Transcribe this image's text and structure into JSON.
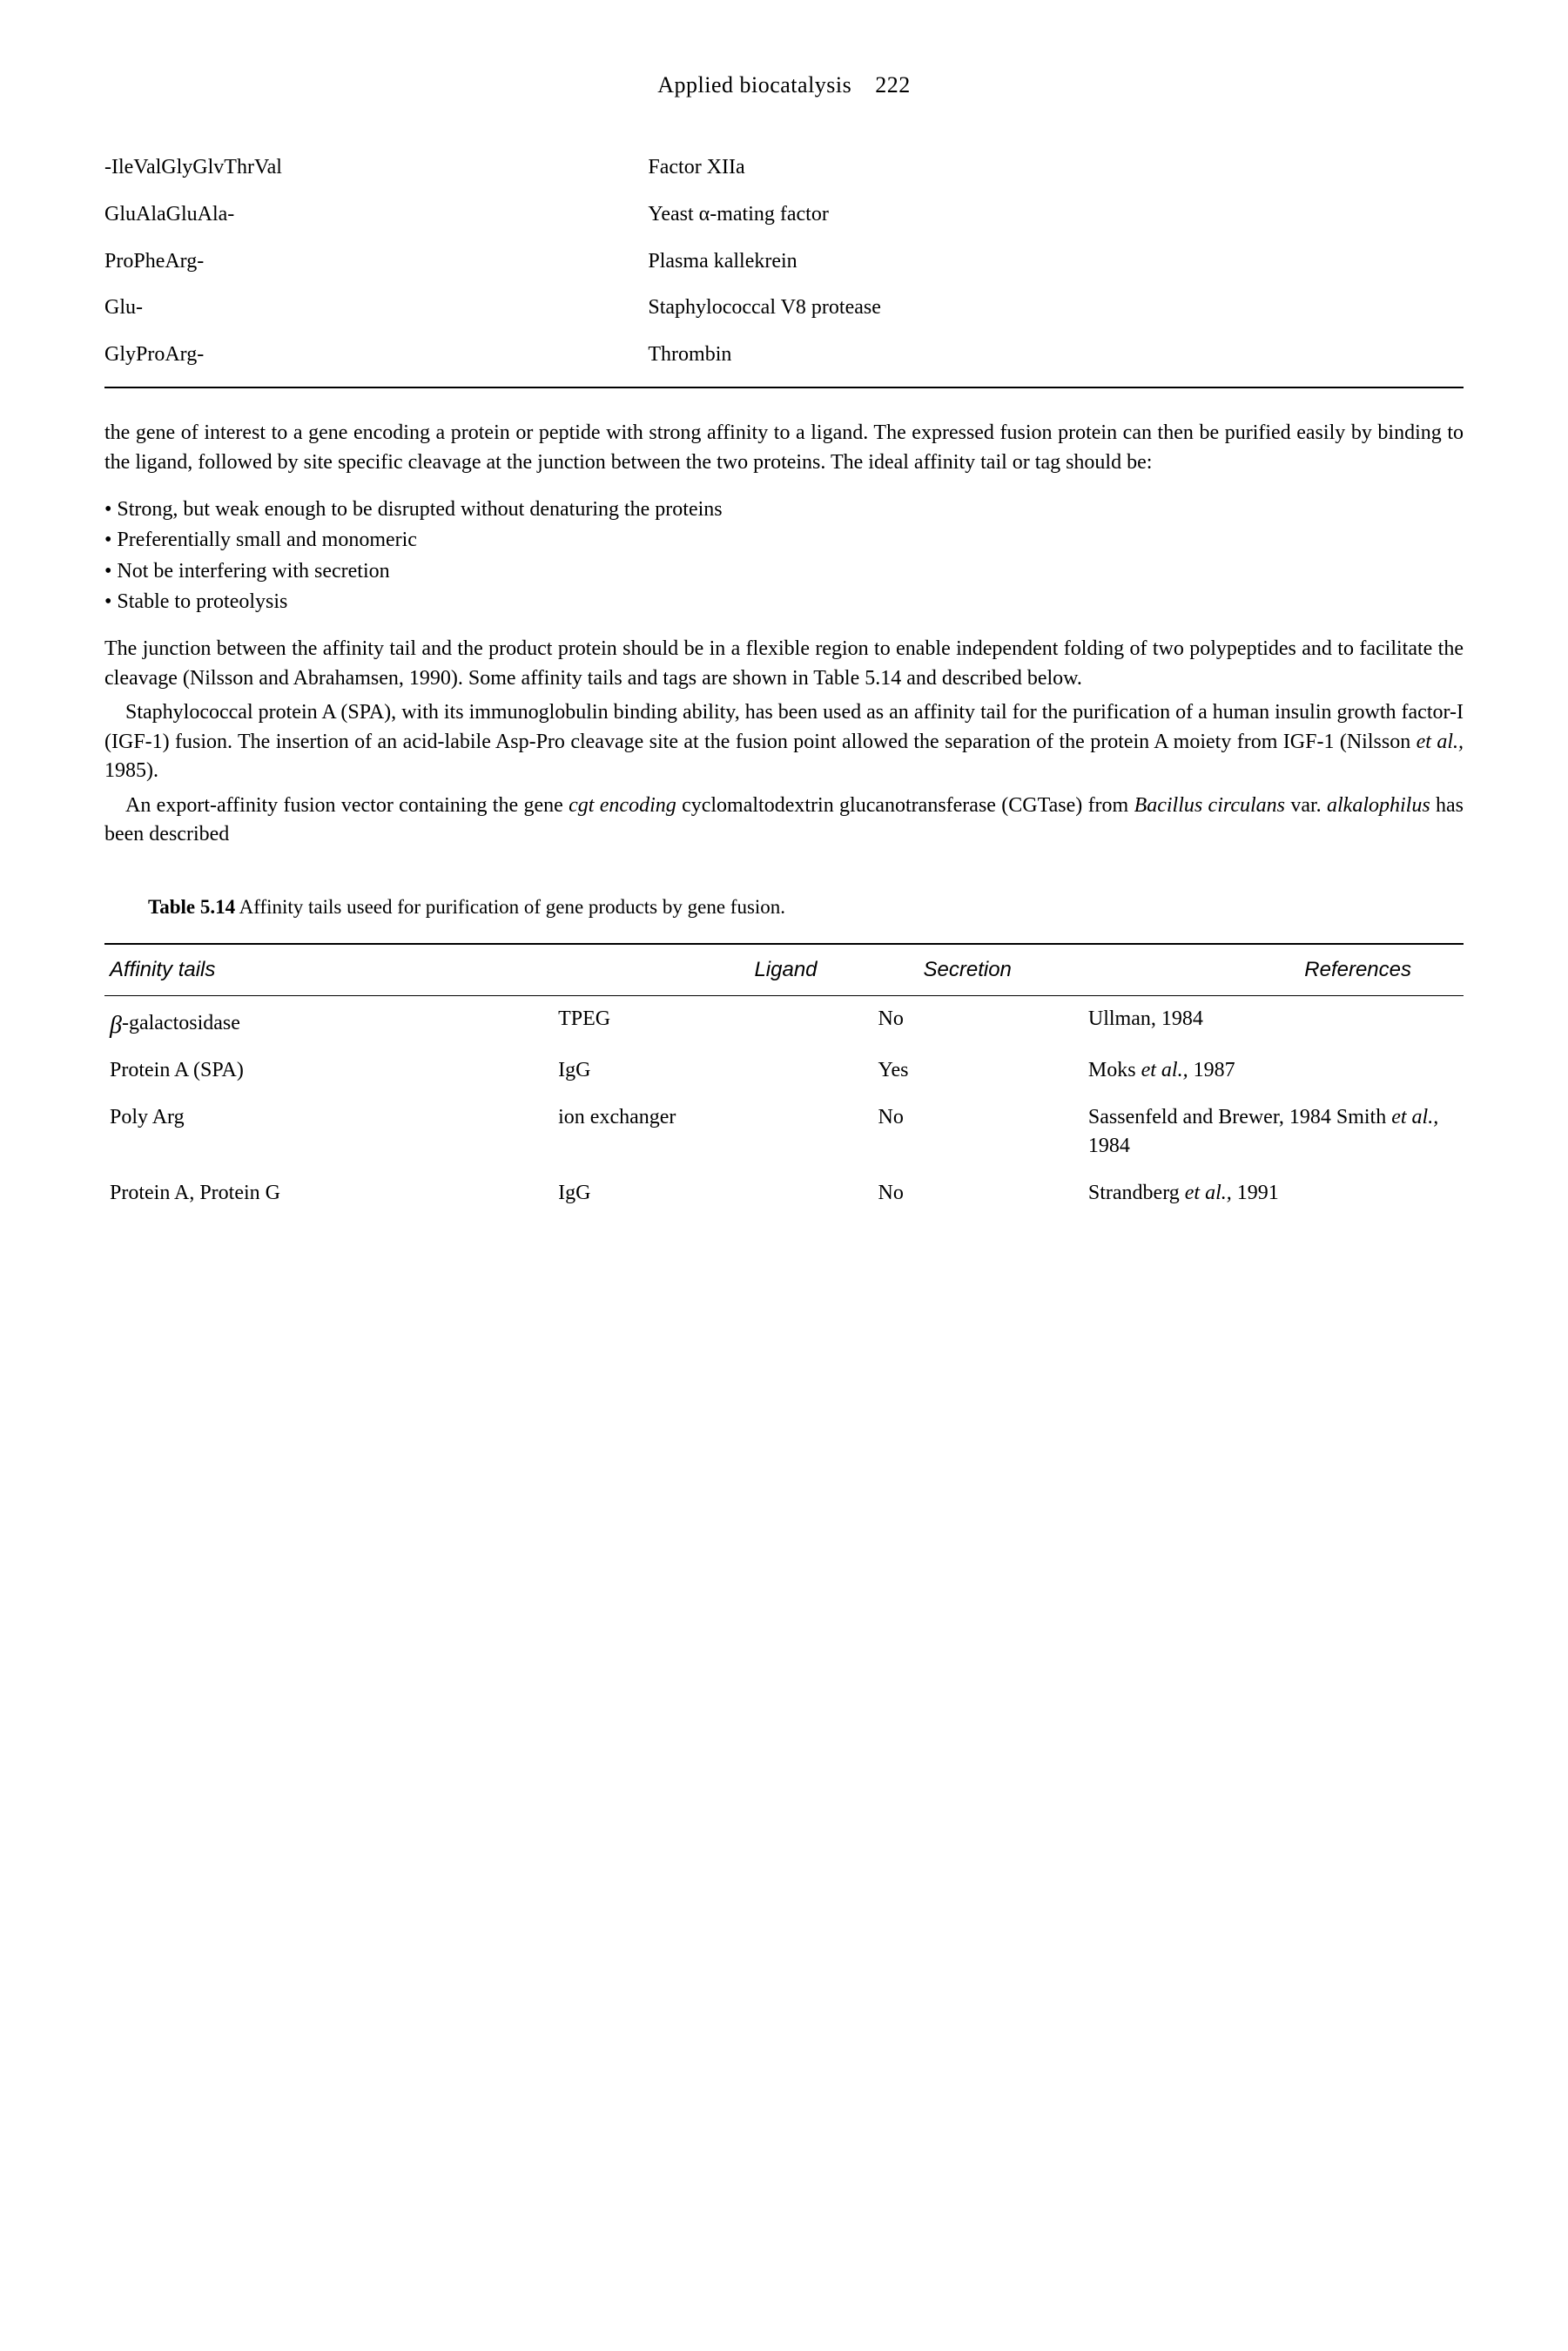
{
  "header": {
    "title": "Applied biocatalysis",
    "pageNumber": "222"
  },
  "table1": {
    "rows": [
      {
        "seq": "-IleValGlyGlvThrVal",
        "factor": "Factor XIIa"
      },
      {
        "seq": "GluAlaGluAla-",
        "factor": "Yeast α-mating factor"
      },
      {
        "seq": "ProPheArg-",
        "factor": "Plasma kallekrein"
      },
      {
        "seq": "Glu-",
        "factor": "Staphylococcal V8 protease"
      },
      {
        "seq": "GlyProArg-",
        "factor": "Thrombin"
      }
    ]
  },
  "para1": "the gene of interest to a gene encoding a protein or peptide with strong affinity to a ligand. The expressed fusion protein can then be purified easily by binding to the ligand, followed by site specific cleavage at the junction between the two proteins. The ideal affinity tail or tag should be:",
  "bullets": [
    "Strong, but weak enough to be disrupted without denaturing the proteins",
    "Preferentially small and monomeric",
    "Not be interfering with secretion",
    "Stable to proteolysis"
  ],
  "para2": "The junction between the affinity tail and the product protein should be in a flexible region to enable independent folding of two polypeptides and to facilitate the cleavage (Nilsson and Abrahamsen, 1990). Some affinity tails and tags are shown in Table 5.14 and described below.",
  "para3_pre": "Staphylococcal protein A (SPA), with its immunoglobulin binding ability, has been used as an affinity tail for the purification of a human insulin growth factor-I (IGF-1) fusion. The insertion of an acid-labile Asp-Pro cleavage site at the fusion point allowed the separation of the protein A moiety from IGF-1 (Nilsson ",
  "para3_italic": "et al.,",
  "para3_post": " 1985).",
  "para4_a": "An export-affinity fusion vector containing the gene ",
  "para4_b": "cgt encoding",
  "para4_c": " cyclomaltodextrin glucanotransferase (CGTase) from ",
  "para4_d": "Bacillus circulans",
  "para4_e": " var. ",
  "para4_f": "alkalophilus",
  "para4_g": " has been described",
  "tableCaption": {
    "label": "Table 5.14",
    "text": " Affinity tails useed for purification of gene products by gene fusion."
  },
  "table2": {
    "headers": {
      "affinity": "Affinity tails",
      "ligand": "Ligand",
      "secretion": "Secretion",
      "references": "References"
    },
    "rows": [
      {
        "affinity_prefix": "β",
        "affinity": "-galactosidase",
        "ligand": "TPEG",
        "secretion": "No",
        "ref": "Ullman, 1984"
      },
      {
        "affinity": "Protein A (SPA)",
        "ligand": "IgG",
        "secretion": "Yes",
        "ref_pre": "Moks ",
        "ref_it": "et al.,",
        "ref_post": " 1987"
      },
      {
        "affinity": "Poly Arg",
        "ligand": "ion exchanger",
        "secretion": "No",
        "ref_pre": "Sassenfeld and Brewer, 1984 Smith ",
        "ref_it": "et al.,",
        "ref_post": " 1984"
      },
      {
        "affinity": "Protein A, Protein G",
        "ligand": "IgG",
        "secretion": "No",
        "ref_pre": "Strandberg ",
        "ref_it": "et al.,",
        "ref_post": " 1991"
      }
    ]
  }
}
